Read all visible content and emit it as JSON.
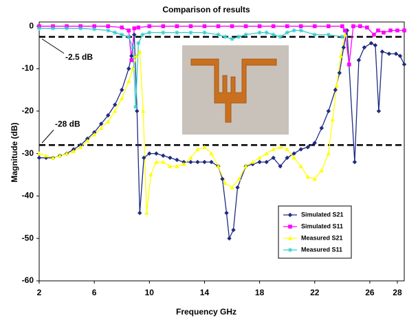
{
  "chart_data": {
    "type": "line",
    "title": "Comparison of results",
    "x_label": "Frequency GHz",
    "y_label": "Magnitude (dB)",
    "xlim": [
      2,
      28.5
    ],
    "xticks": [
      2,
      6,
      10,
      14,
      18,
      22,
      26,
      28
    ],
    "ylim": [
      -60,
      1
    ],
    "yticks": [
      0,
      -10,
      -20,
      -30,
      -40,
      -50,
      -60
    ],
    "reference_lines": [
      {
        "y": -2.5,
        "label": "-2.5 dB"
      },
      {
        "y": -28,
        "label": "-28 dB"
      }
    ],
    "series": [
      {
        "name": "Simulated S21",
        "color": "#1f2a80",
        "marker": "diamond",
        "x": [
          2,
          2.5,
          3,
          3.5,
          4,
          4.5,
          5,
          5.5,
          6,
          6.5,
          7,
          7.5,
          8,
          8.5,
          8.7,
          8.9,
          9.1,
          9.3,
          9.6,
          10,
          10.5,
          11,
          11.5,
          12,
          12.5,
          13,
          13.5,
          14,
          14.5,
          15,
          15.3,
          15.6,
          15.8,
          16.1,
          16.4,
          17,
          17.5,
          18,
          18.5,
          19,
          19.5,
          20,
          20.5,
          21,
          21.5,
          22,
          22.5,
          23,
          23.5,
          23.8,
          24.1,
          24.35,
          24.9,
          25.2,
          25.6,
          26.1,
          26.4,
          26.65,
          26.9,
          27.4,
          27.9,
          28.2,
          28.5
        ],
        "values": [
          -31,
          -31,
          -31,
          -30.5,
          -30,
          -29,
          -28,
          -26.5,
          -25,
          -23,
          -21,
          -18.5,
          -15,
          -10,
          -7,
          -2,
          -20,
          -44,
          -31,
          -30,
          -30,
          -30.5,
          -31,
          -31.5,
          -32,
          -32,
          -32,
          -32,
          -32,
          -33,
          -36,
          -44,
          -50,
          -48,
          -38,
          -33,
          -32.5,
          -32,
          -32,
          -31,
          -33,
          -31,
          -30,
          -29,
          -28.5,
          -27.5,
          -24,
          -20,
          -15,
          -11,
          -5,
          -1,
          -32,
          -8,
          -5,
          -4,
          -4.5,
          -20,
          -6,
          -6.5,
          -6.5,
          -7,
          -9
        ]
      },
      {
        "name": "Simulated S11",
        "color": "#ff00ff",
        "marker": "square",
        "x": [
          2,
          3,
          4,
          5,
          6,
          7,
          8,
          8.5,
          8.7,
          8.9,
          9.2,
          10,
          11,
          12,
          13,
          14,
          15,
          16,
          17,
          18,
          19,
          20,
          21,
          22,
          23,
          24,
          24.2,
          24.5,
          24.8,
          25.3,
          25.8,
          26.3,
          26.6,
          27,
          27.5,
          28,
          28.5
        ],
        "values": [
          0,
          0,
          0,
          0,
          0,
          0,
          -0.3,
          -1,
          -8,
          -0.5,
          -0.3,
          0,
          0,
          0,
          0,
          0,
          0,
          0,
          0,
          0,
          0,
          0,
          0,
          0,
          0,
          0,
          -1,
          -9,
          0,
          0,
          -0.3,
          -2,
          -1,
          -1.5,
          -1,
          -1,
          -1
        ]
      },
      {
        "name": "Measured S21",
        "color": "#ffff00",
        "marker": "triangle",
        "x": [
          2,
          2.5,
          3,
          3.5,
          4,
          4.5,
          5,
          5.5,
          6,
          6.5,
          7,
          7.5,
          8,
          8.5,
          8.8,
          9.05,
          9.3,
          9.55,
          9.8,
          10.1,
          10.5,
          11,
          11.5,
          12,
          12.5,
          13,
          13.5,
          14,
          14.5,
          15,
          15.5,
          16,
          16.5,
          17,
          17.5,
          18,
          18.5,
          19,
          19.5,
          20,
          20.5,
          21,
          21.5,
          22,
          22.5,
          23,
          23.3,
          23.6,
          23.9,
          24.2
        ],
        "values": [
          -30,
          -30.5,
          -31,
          -30.5,
          -30,
          -29.5,
          -28.5,
          -27,
          -25.5,
          -24,
          -22.5,
          -20,
          -17,
          -13,
          -10,
          -7,
          -6,
          -20,
          -44,
          -35,
          -32,
          -32,
          -33,
          -33,
          -32.5,
          -31,
          -29,
          -28.5,
          -30,
          -33,
          -37,
          -38,
          -36,
          -33,
          -32,
          -31,
          -30,
          -29,
          -28.5,
          -29,
          -31,
          -33,
          -35.5,
          -36,
          -34,
          -30,
          -22,
          -14,
          -7,
          -2
        ]
      },
      {
        "name": "Measured S11",
        "color": "#33cccc",
        "marker": "star",
        "x": [
          2,
          3,
          4,
          5,
          6,
          7,
          7.5,
          8,
          8.5,
          8.8,
          9,
          9.2,
          9.5,
          10,
          11,
          12,
          13,
          14,
          15,
          15.5,
          16,
          16.5,
          17,
          18,
          18.5,
          19,
          19.5,
          20,
          20.5,
          21,
          22,
          23,
          24
        ],
        "values": [
          -0.5,
          -0.5,
          -0.5,
          -0.5,
          -0.7,
          -1,
          -1.5,
          -2,
          -2.5,
          -5,
          -19,
          -4,
          -2,
          -1.5,
          -1.5,
          -1.5,
          -1.5,
          -1.5,
          -2,
          -2.5,
          -3,
          -2.5,
          -2,
          -1.5,
          -1.5,
          -2,
          -2.5,
          -1.5,
          -1,
          -1,
          -2,
          -2,
          -2.5
        ]
      }
    ]
  }
}
